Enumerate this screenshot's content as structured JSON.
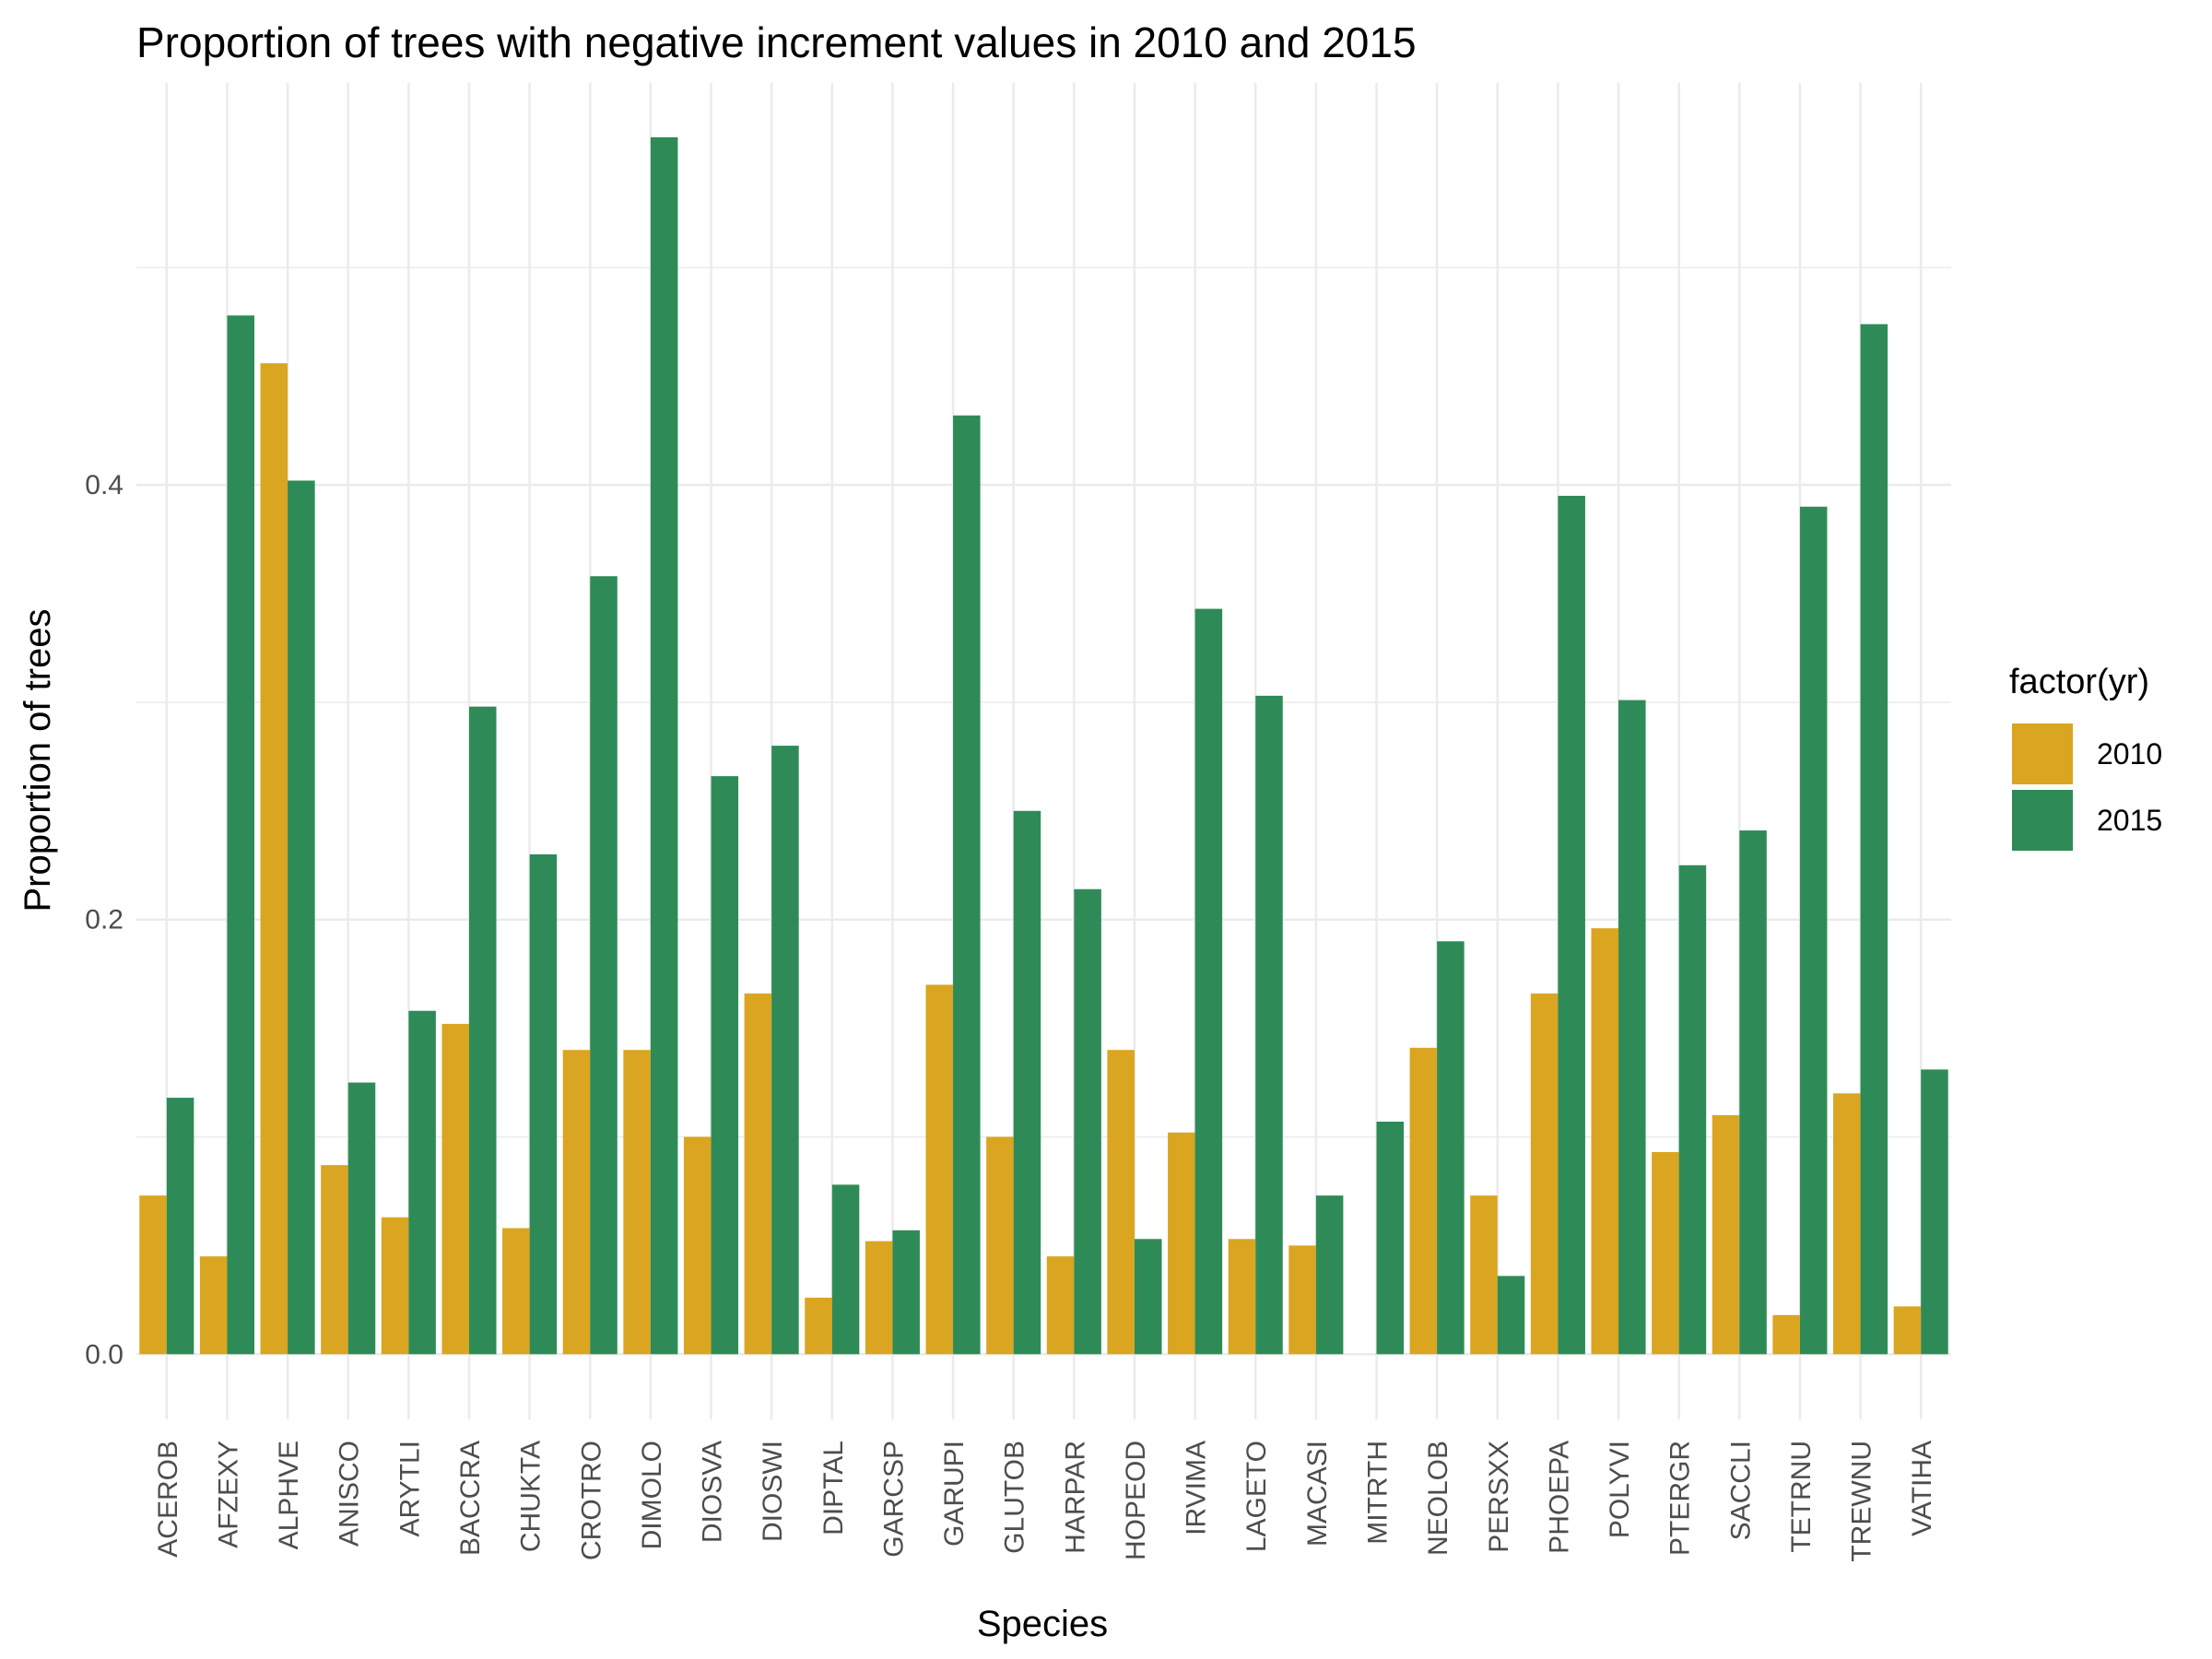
{
  "chart_data": {
    "type": "bar",
    "title": "Proportion of trees with negative increment values in 2010 and 2015",
    "xlabel": "Species",
    "ylabel": "Proportion of trees",
    "ylim": [
      -0.03,
      0.585
    ],
    "yticks": [
      0.0,
      0.2,
      0.4
    ],
    "ytick_labels": [
      "0.0",
      "0.2",
      "0.4"
    ],
    "grid": true,
    "legend_title": "factor(yr)",
    "legend_position": "right",
    "categories": [
      "ACEROB",
      "AFZEXY",
      "ALPHVE",
      "ANISCO",
      "ARYTLI",
      "BACCRA",
      "CHUKTA",
      "CROTRO",
      "DIMOLO",
      "DIOSVA",
      "DIOSWI",
      "DIPTAL",
      "GARCSP",
      "GARUPI",
      "GLUTOB",
      "HARPAR",
      "HOPEOD",
      "IRVIMA",
      "LAGETO",
      "MACASI",
      "MITRTH",
      "NEOLOB",
      "PERSXX",
      "PHOEPA",
      "POLYVI",
      "PTERGR",
      "SACCLI",
      "TETRNU",
      "TREWNU",
      "VATIHA"
    ],
    "series": [
      {
        "name": "2010",
        "color": "#DAA520",
        "values": [
          0.073,
          0.045,
          0.456,
          0.087,
          0.063,
          0.152,
          0.058,
          0.14,
          0.14,
          0.1,
          0.166,
          0.026,
          0.052,
          0.17,
          0.1,
          0.045,
          0.14,
          0.102,
          0.053,
          0.05,
          0.0,
          0.141,
          0.073,
          0.166,
          0.196,
          0.093,
          0.11,
          0.018,
          0.12,
          0.022
        ]
      },
      {
        "name": "2015",
        "color": "#2E8B57",
        "values": [
          0.118,
          0.478,
          0.402,
          0.125,
          0.158,
          0.298,
          0.23,
          0.358,
          0.56,
          0.266,
          0.28,
          0.078,
          0.057,
          0.432,
          0.25,
          0.214,
          0.053,
          0.343,
          0.303,
          0.073,
          0.107,
          0.19,
          0.036,
          0.395,
          0.301,
          0.225,
          0.241,
          0.39,
          0.474,
          0.131
        ]
      }
    ]
  }
}
